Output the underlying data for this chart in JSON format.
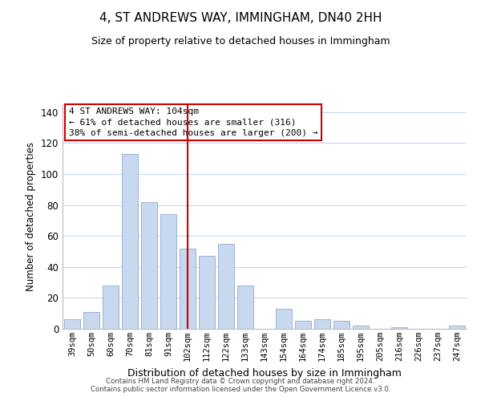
{
  "title": "4, ST ANDREWS WAY, IMMINGHAM, DN40 2HH",
  "subtitle": "Size of property relative to detached houses in Immingham",
  "xlabel": "Distribution of detached houses by size in Immingham",
  "ylabel": "Number of detached properties",
  "categories": [
    "39sqm",
    "50sqm",
    "60sqm",
    "70sqm",
    "81sqm",
    "91sqm",
    "102sqm",
    "112sqm",
    "122sqm",
    "133sqm",
    "143sqm",
    "154sqm",
    "164sqm",
    "174sqm",
    "185sqm",
    "195sqm",
    "205sqm",
    "216sqm",
    "226sqm",
    "237sqm",
    "247sqm"
  ],
  "values": [
    6,
    11,
    28,
    113,
    82,
    74,
    52,
    47,
    55,
    28,
    0,
    13,
    5,
    6,
    5,
    2,
    0,
    1,
    0,
    0,
    2
  ],
  "bar_color": "#c8d8ee",
  "bar_edge_color": "#9ab4d4",
  "vline_x_index": 6,
  "vline_color": "#cc0000",
  "ylim": [
    0,
    145
  ],
  "yticks": [
    0,
    20,
    40,
    60,
    80,
    100,
    120,
    140
  ],
  "annotation_title": "4 ST ANDREWS WAY: 104sqm",
  "annotation_line1": "← 61% of detached houses are smaller (316)",
  "annotation_line2": "38% of semi-detached houses are larger (200) →",
  "annotation_box_color": "#ffffff",
  "annotation_box_edge": "#cc0000",
  "footer_line1": "Contains HM Land Registry data © Crown copyright and database right 2024.",
  "footer_line2": "Contains public sector information licensed under the Open Government Licence v3.0.",
  "background_color": "#ffffff",
  "grid_color": "#c8daf0"
}
